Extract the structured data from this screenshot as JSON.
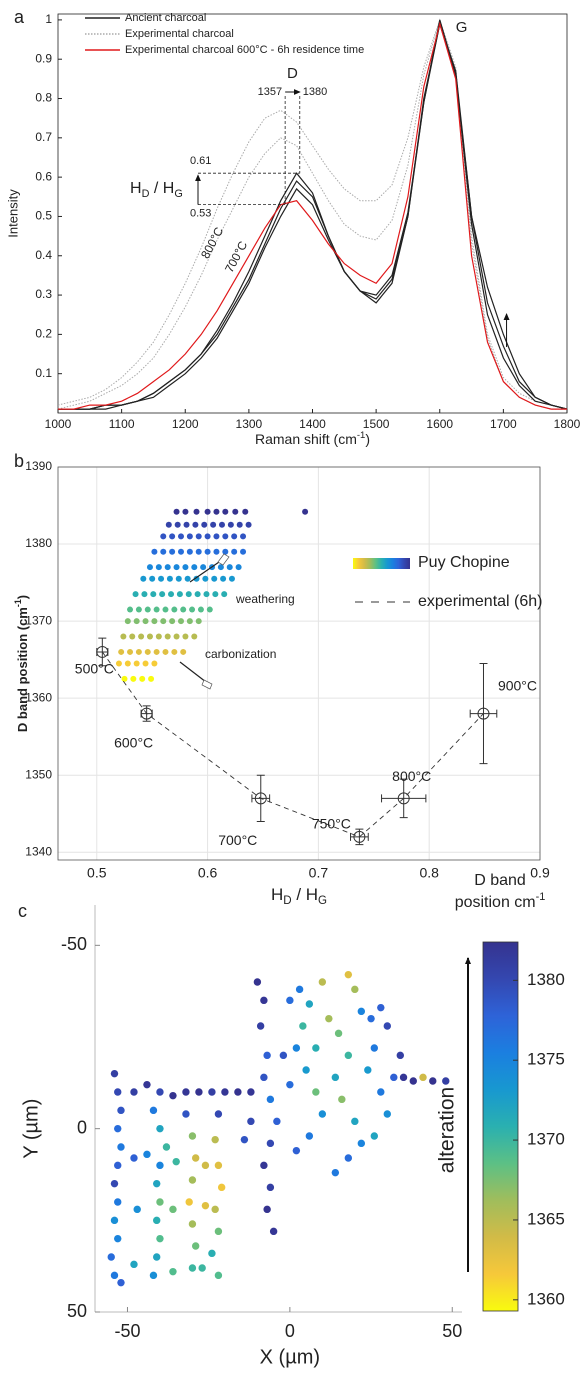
{
  "chart_data": [
    {
      "type": "line",
      "panel": "a",
      "ylabel": "Intensity",
      "xlabel": [
        "Raman shift (cm",
        "-1",
        ")"
      ],
      "xlim": [
        1000,
        1800
      ],
      "ylim": [
        0,
        1.015
      ],
      "xticks": [
        1000,
        1100,
        1200,
        1300,
        1400,
        1500,
        1600,
        1700,
        1800
      ],
      "yticks": [
        0.1,
        0.2,
        0.3,
        0.4,
        0.5,
        0.6,
        0.7,
        0.8,
        0.9,
        1
      ],
      "x": [
        1000,
        1025,
        1050,
        1075,
        1100,
        1125,
        1150,
        1175,
        1200,
        1225,
        1250,
        1275,
        1300,
        1325,
        1350,
        1375,
        1400,
        1425,
        1450,
        1475,
        1500,
        1525,
        1550,
        1575,
        1600,
        1625,
        1650,
        1675,
        1700,
        1725,
        1750,
        1775,
        1800
      ],
      "series": [
        {
          "name": "Experimental charcoal",
          "color": "#aaaaaa",
          "style": "dotted",
          "legend_text_color": "#222222",
          "values": [
            0.02,
            0.03,
            0.04,
            0.06,
            0.09,
            0.13,
            0.18,
            0.25,
            0.33,
            0.42,
            0.52,
            0.61,
            0.69,
            0.75,
            0.77,
            0.74,
            0.68,
            0.62,
            0.57,
            0.54,
            0.54,
            0.58,
            0.7,
            0.88,
            1.0,
            0.88,
            0.45,
            0.2,
            0.09,
            0.05,
            0.03,
            0.02,
            0.01
          ]
        },
        {
          "color": "#aaaaaa",
          "style": "dotted",
          "values": [
            0.01,
            0.02,
            0.03,
            0.05,
            0.07,
            0.1,
            0.14,
            0.2,
            0.27,
            0.35,
            0.44,
            0.52,
            0.6,
            0.66,
            0.7,
            0.68,
            0.61,
            0.54,
            0.48,
            0.45,
            0.44,
            0.49,
            0.63,
            0.86,
            1.0,
            0.87,
            0.43,
            0.19,
            0.08,
            0.04,
            0.02,
            0.01,
            0.01
          ]
        },
        {
          "name": "Ancient charcoal",
          "color": "#222222",
          "style": "solid",
          "legend_text_color": "#222222",
          "values": [
            0.01,
            0.01,
            0.01,
            0.02,
            0.02,
            0.03,
            0.05,
            0.08,
            0.11,
            0.15,
            0.21,
            0.28,
            0.36,
            0.45,
            0.54,
            0.61,
            0.56,
            0.45,
            0.36,
            0.31,
            0.28,
            0.33,
            0.5,
            0.8,
            0.99,
            0.86,
            0.5,
            0.32,
            0.2,
            0.1,
            0.04,
            0.02,
            0.01
          ]
        },
        {
          "color": "#222222",
          "style": "solid",
          "values": [
            0.01,
            0.01,
            0.01,
            0.02,
            0.02,
            0.03,
            0.05,
            0.08,
            0.11,
            0.15,
            0.2,
            0.27,
            0.34,
            0.43,
            0.52,
            0.59,
            0.55,
            0.45,
            0.36,
            0.31,
            0.29,
            0.34,
            0.5,
            0.79,
            0.99,
            0.87,
            0.5,
            0.28,
            0.17,
            0.08,
            0.04,
            0.02,
            0.01
          ]
        },
        {
          "color": "#222222",
          "style": "solid",
          "values": [
            0.01,
            0.01,
            0.01,
            0.01,
            0.02,
            0.03,
            0.04,
            0.07,
            0.1,
            0.14,
            0.19,
            0.26,
            0.33,
            0.42,
            0.5,
            0.57,
            0.53,
            0.44,
            0.36,
            0.31,
            0.3,
            0.35,
            0.51,
            0.79,
            1.0,
            0.86,
            0.48,
            0.25,
            0.14,
            0.07,
            0.03,
            0.02,
            0.01
          ]
        },
        {
          "name": "Experimental charcoal 600°C - 6h residence time",
          "color": "#e0191b",
          "style": "solid",
          "legend_text_color": "#e0191b",
          "values": [
            0.01,
            0.01,
            0.02,
            0.02,
            0.03,
            0.05,
            0.08,
            0.11,
            0.15,
            0.2,
            0.26,
            0.33,
            0.4,
            0.47,
            0.53,
            0.54,
            0.49,
            0.43,
            0.38,
            0.35,
            0.33,
            0.38,
            0.55,
            0.83,
            0.99,
            0.85,
            0.4,
            0.18,
            0.08,
            0.04,
            0.02,
            0.01,
            0.01
          ]
        }
      ],
      "d_band": {
        "label": "D",
        "from": 1357,
        "to": 1380
      },
      "hd_hg": {
        "label": [
          "H",
          "D",
          " / H",
          "G"
        ],
        "low": 0.53,
        "high": 0.61
      },
      "g_band": "G",
      "temperature_labels": [
        "800°C",
        "700°C"
      ]
    },
    {
      "type": "scatter",
      "panel": "b",
      "xlabel": [
        "H",
        "D",
        " / H",
        "G"
      ],
      "ylabel": [
        "D band position (cm",
        "-1",
        ")"
      ],
      "xlim": [
        0.465,
        0.9
      ],
      "ylim": [
        1339,
        1390
      ],
      "xticks": [
        0.5,
        0.6,
        0.7,
        0.8,
        0.9
      ],
      "yticks": [
        1340,
        1350,
        1360,
        1370,
        1380,
        1390
      ],
      "grid": true,
      "colormap": {
        "clim": [
          1362.5,
          1384.2
        ],
        "colors": [
          "#f9fb0e",
          "#f6c83a",
          "#d2bb47",
          "#a0bd5c",
          "#5cc085",
          "#2ab0b0",
          "#1898d0",
          "#1b7fe0",
          "#2e63d8",
          "#3447b0",
          "#35338f"
        ]
      },
      "series": [
        {
          "name": "Puy Chopine",
          "x": [
            0.572,
            0.58,
            0.59,
            0.6,
            0.608,
            0.616,
            0.625,
            0.634,
            0.688,
            0.565,
            0.573,
            0.581,
            0.589,
            0.597,
            0.605,
            0.613,
            0.621,
            0.629,
            0.637,
            0.56,
            0.568,
            0.576,
            0.584,
            0.592,
            0.6,
            0.608,
            0.616,
            0.624,
            0.632,
            0.552,
            0.56,
            0.568,
            0.576,
            0.584,
            0.592,
            0.6,
            0.608,
            0.616,
            0.624,
            0.632,
            0.548,
            0.556,
            0.564,
            0.572,
            0.58,
            0.588,
            0.596,
            0.604,
            0.612,
            0.62,
            0.628,
            0.542,
            0.55,
            0.558,
            0.566,
            0.574,
            0.582,
            0.59,
            0.598,
            0.606,
            0.614,
            0.622,
            0.535,
            0.543,
            0.551,
            0.559,
            0.567,
            0.575,
            0.583,
            0.591,
            0.599,
            0.607,
            0.615,
            0.53,
            0.538,
            0.546,
            0.554,
            0.562,
            0.57,
            0.578,
            0.586,
            0.594,
            0.602,
            0.528,
            0.536,
            0.544,
            0.552,
            0.56,
            0.568,
            0.576,
            0.584,
            0.592,
            0.524,
            0.532,
            0.54,
            0.548,
            0.556,
            0.564,
            0.572,
            0.58,
            0.588,
            0.522,
            0.53,
            0.538,
            0.546,
            0.554,
            0.562,
            0.57,
            0.578,
            0.52,
            0.528,
            0.536,
            0.544,
            0.552,
            0.525,
            0.533,
            0.541,
            0.549
          ],
          "y": [
            1384.2,
            1384.2,
            1384.2,
            1384.2,
            1384.2,
            1384.2,
            1384.2,
            1384.2,
            1384.2,
            1382.5,
            1382.5,
            1382.5,
            1382.5,
            1382.5,
            1382.5,
            1382.5,
            1382.5,
            1382.5,
            1382.5,
            1381,
            1381,
            1381,
            1381,
            1381,
            1381,
            1381,
            1381,
            1381,
            1381,
            1379,
            1379,
            1379,
            1379,
            1379,
            1379,
            1379,
            1379,
            1379,
            1379,
            1379,
            1377,
            1377,
            1377,
            1377,
            1377,
            1377,
            1377,
            1377,
            1377,
            1377,
            1377,
            1375.5,
            1375.5,
            1375.5,
            1375.5,
            1375.5,
            1375.5,
            1375.5,
            1375.5,
            1375.5,
            1375.5,
            1375.5,
            1373.5,
            1373.5,
            1373.5,
            1373.5,
            1373.5,
            1373.5,
            1373.5,
            1373.5,
            1373.5,
            1373.5,
            1373.5,
            1371.5,
            1371.5,
            1371.5,
            1371.5,
            1371.5,
            1371.5,
            1371.5,
            1371.5,
            1371.5,
            1371.5,
            1370,
            1370,
            1370,
            1370,
            1370,
            1370,
            1370,
            1370,
            1370,
            1368,
            1368,
            1368,
            1368,
            1368,
            1368,
            1368,
            1368,
            1368,
            1366,
            1366,
            1366,
            1366,
            1366,
            1366,
            1366,
            1366,
            1364.5,
            1364.5,
            1364.5,
            1364.5,
            1364.5,
            1362.5,
            1362.5,
            1362.5,
            1362.5
          ]
        },
        {
          "name": "experimental (6h)",
          "color": "#333333",
          "x": [
            0.505,
            0.545,
            0.648,
            0.737,
            0.777,
            0.849
          ],
          "y": [
            1366,
            1358,
            1347,
            1342,
            1347,
            1358
          ],
          "xerr": [
            0.005,
            0.005,
            0.008,
            0.008,
            0.02,
            0.012
          ],
          "yerr": [
            1.8,
            1,
            3,
            1,
            2.5,
            6.5
          ],
          "point_labels": [
            "500°C",
            "600°C",
            "700°C",
            "750°C",
            "800°C",
            "900°C"
          ]
        }
      ],
      "annotations": [
        "weathering",
        "carbonization"
      ]
    },
    {
      "type": "map",
      "panel": "c",
      "xlabel": "X (µm)",
      "ylabel": "Y (µm)",
      "xlim": [
        -60,
        53
      ],
      "ylim": [
        -61,
        50
      ],
      "y_reversed": true,
      "xticks": [
        -50,
        0,
        50
      ],
      "yticks": [
        -50,
        0,
        50
      ],
      "x": [
        -54,
        -53,
        -52,
        -53,
        -52,
        -53,
        -54,
        -53,
        -54,
        -53,
        -55,
        -54,
        -52,
        -48,
        -44,
        -40,
        -36,
        -32,
        -28,
        -24,
        -20,
        -16,
        -12,
        -42,
        -40,
        -38,
        -40,
        -41,
        -40,
        -41,
        -40,
        -41,
        -42,
        -32,
        -30,
        -29,
        -30,
        -31,
        -30,
        -29,
        -30,
        -22,
        -23,
        -22,
        -21,
        -23,
        -22,
        -24,
        -22,
        -48,
        -44,
        -35,
        -26,
        -47,
        -36,
        -26,
        -48,
        -36,
        -27,
        -10,
        -8,
        -9,
        -7,
        -8,
        -6,
        -4,
        -6,
        -8,
        -6,
        -7,
        -5,
        -12,
        -14,
        0,
        3,
        6,
        4,
        2,
        5,
        8,
        10,
        6,
        2,
        0,
        -2,
        12,
        15,
        18,
        14,
        16,
        20,
        22,
        18,
        14,
        18,
        20,
        22,
        25,
        28,
        30,
        26,
        24,
        28,
        32,
        34,
        30,
        26,
        35,
        38,
        41,
        44,
        48,
        10,
        8
      ],
      "y": [
        -15,
        -10,
        -5,
        0,
        5,
        10,
        15,
        20,
        25,
        30,
        35,
        40,
        42,
        -10,
        -12,
        -10,
        -9,
        -10,
        -10,
        -10,
        -10,
        -10,
        -10,
        -5,
        0,
        5,
        10,
        15,
        20,
        25,
        30,
        35,
        40,
        -4,
        2,
        8,
        14,
        20,
        26,
        32,
        38,
        -4,
        3,
        10,
        16,
        22,
        28,
        34,
        40,
        8,
        7,
        9,
        10,
        22,
        22,
        21,
        37,
        39,
        38,
        -40,
        -35,
        -28,
        -20,
        -14,
        -8,
        -2,
        4,
        10,
        16,
        22,
        28,
        -2,
        3,
        -35,
        -38,
        -34,
        -28,
        -22,
        -16,
        -10,
        -4,
        2,
        6,
        -12,
        -20,
        -30,
        -26,
        -20,
        -14,
        -8,
        -2,
        4,
        8,
        12,
        -42,
        -38,
        -32,
        -30,
        -33,
        -28,
        -22,
        -16,
        -10,
        -14,
        -20,
        -4,
        2,
        -14,
        -13,
        -14,
        -13,
        -13,
        -40,
        -22
      ],
      "values": [
        1381,
        1380,
        1379,
        1377,
        1376,
        1378,
        1380,
        1376,
        1374,
        1375,
        1377,
        1376,
        1378,
        1381,
        1382,
        1380,
        1383,
        1382,
        1383,
        1381,
        1382,
        1383,
        1382,
        1376,
        1372,
        1370,
        1375,
        1372,
        1368,
        1371,
        1369,
        1372,
        1374,
        1379,
        1367,
        1364,
        1366,
        1362,
        1366,
        1368,
        1370,
        1380,
        1365,
        1363,
        1362,
        1365,
        1368,
        1371,
        1369,
        1378,
        1375,
        1370,
        1364,
        1374,
        1368,
        1363,
        1372,
        1369,
        1370,
        1384,
        1382,
        1381,
        1378,
        1379,
        1376,
        1378,
        1380,
        1382,
        1381,
        1383,
        1382,
        1380,
        1379,
        1377,
        1376,
        1372,
        1370,
        1375,
        1373,
        1368,
        1374,
        1376,
        1378,
        1377,
        1379,
        1366,
        1368,
        1370,
        1372,
        1367,
        1372,
        1375,
        1377,
        1376,
        1363,
        1366,
        1375,
        1377,
        1378,
        1380,
        1376,
        1373,
        1376,
        1378,
        1381,
        1374,
        1372,
        1382,
        1383,
        1364,
        1384,
        1381,
        1365,
        1371
      ],
      "colorbar": {
        "title": [
          "D band",
          "position cm",
          "-1"
        ],
        "clim": [
          1359.3,
          1382.4
        ],
        "ticks": [
          1360,
          1365,
          1370,
          1375,
          1380
        ],
        "arrow_label": "alteration",
        "colors": [
          "#f9fb0e",
          "#f6c83a",
          "#d2bb47",
          "#a0bd5c",
          "#5cc085",
          "#2ab0b0",
          "#1898d0",
          "#1b7fe0",
          "#2e63d8",
          "#3447b0",
          "#35338f"
        ]
      }
    }
  ]
}
